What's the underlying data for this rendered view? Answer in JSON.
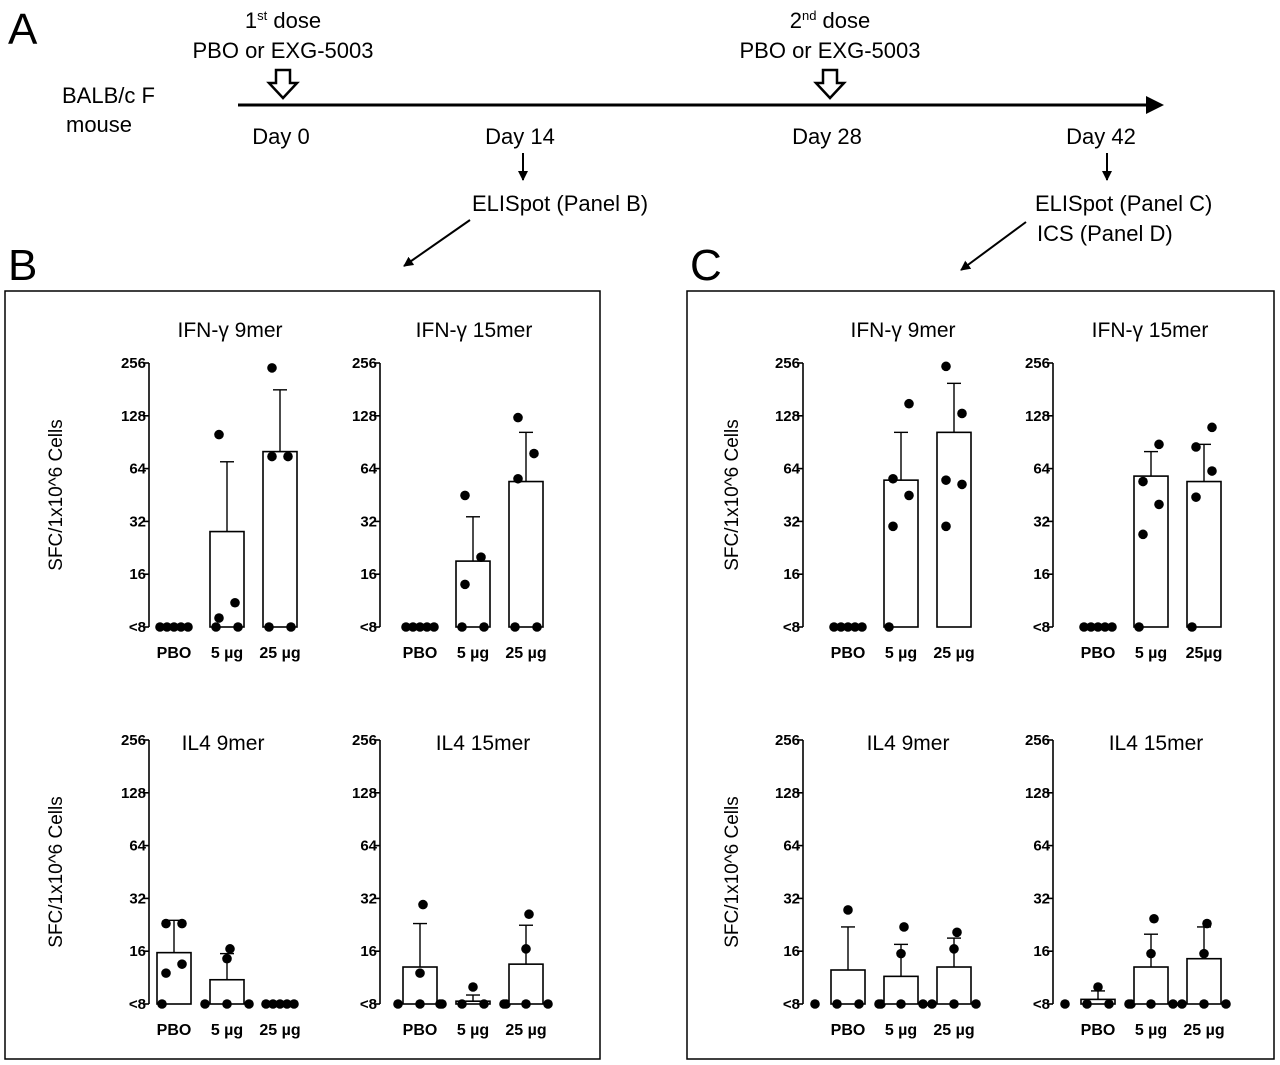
{
  "figure_labels": {
    "a": "A",
    "b": "B",
    "c": "C"
  },
  "timeline": {
    "subject_line1": "BALB/c F",
    "subject_line2": "mouse",
    "dose1_prefix": "1",
    "dose1_sup": "st",
    "dose1_suffix": " dose",
    "dose2_prefix": "2",
    "dose2_sup": "nd",
    "dose2_suffix": " dose",
    "treatment": "PBO or EXG-5003",
    "days": [
      "Day 0",
      "Day 14",
      "Day 28",
      "Day 42"
    ],
    "elispot_b": "ELISpot  (Panel B)",
    "elispot_c": "ELISpot  (Panel C)",
    "ics_d": "ICS  (Panel D)"
  },
  "colors": {
    "bar_fill": "#ffffff",
    "stroke": "#000000",
    "dot": "#000000"
  },
  "chart_data": [
    {
      "panel": "B",
      "type": "bar",
      "title": "IFN-γ  9mer",
      "ylabel": "SFC/1x10^6   Cells",
      "y_scale": "log2",
      "yticks": [
        "<8",
        "16",
        "32",
        "64",
        "128",
        "256"
      ],
      "categories": [
        "PBO",
        "5 µg",
        "25 µg"
      ],
      "values": [
        8,
        28,
        80
      ],
      "error_upper": [
        8,
        70,
        180
      ],
      "points": [
        [
          8,
          8,
          8,
          8,
          8
        ],
        [
          8,
          8,
          9,
          11,
          100
        ],
        [
          8,
          8,
          75,
          75,
          240
        ]
      ]
    },
    {
      "panel": "B",
      "type": "bar",
      "title": "IFN-γ  15mer",
      "ylabel": "",
      "y_scale": "log2",
      "yticks": [
        "<8",
        "16",
        "32",
        "64",
        "128",
        "256"
      ],
      "categories": [
        "PBO",
        "5 µg",
        "25 µg"
      ],
      "values": [
        8,
        19,
        54
      ],
      "error_upper": [
        8,
        34,
        103
      ],
      "points": [
        [
          8,
          8,
          8,
          8,
          8
        ],
        [
          8,
          8,
          14,
          20,
          45
        ],
        [
          8,
          8,
          56,
          78,
          125
        ]
      ]
    },
    {
      "panel": "B",
      "type": "bar",
      "title": "IL4  9mer",
      "ylabel": "SFC/1x10^6   Cells",
      "y_scale": "log2",
      "yticks": [
        "<8",
        "16",
        "32",
        "64",
        "128",
        "256"
      ],
      "categories": [
        "PBO",
        "5 µg",
        "25 µg"
      ],
      "values": [
        15.7,
        11,
        8
      ],
      "error_upper": [
        24,
        15.5,
        8
      ],
      "points": [
        [
          8,
          12,
          13.5,
          23,
          23
        ],
        [
          8,
          8,
          8,
          14.5,
          16.5
        ],
        [
          8,
          8,
          8,
          8,
          8
        ]
      ]
    },
    {
      "panel": "B",
      "type": "bar",
      "title": "IL4  15mer",
      "ylabel": "",
      "y_scale": "log2",
      "yticks": [
        "<8",
        "16",
        "32",
        "64",
        "128",
        "256"
      ],
      "categories": [
        "PBO",
        "5 µg",
        "25 µg"
      ],
      "values": [
        13,
        8.3,
        13.5
      ],
      "error_upper": [
        23,
        9,
        22.5
      ],
      "points": [
        [
          8,
          8,
          8,
          12,
          29.5
        ],
        [
          8,
          8,
          8,
          8,
          10
        ],
        [
          8,
          8,
          8,
          16.5,
          26
        ]
      ]
    },
    {
      "panel": "C",
      "type": "bar",
      "title": "IFN-γ  9mer",
      "ylabel": "SFC/1x10^6   Cells",
      "y_scale": "log2",
      "yticks": [
        "<8",
        "16",
        "32",
        "64",
        "128",
        "256"
      ],
      "categories": [
        "PBO",
        "5 µg",
        "25 µg"
      ],
      "values": [
        8,
        55,
        103
      ],
      "error_upper": [
        8,
        103,
        196
      ],
      "points": [
        [
          8,
          8,
          8,
          8,
          8
        ],
        [
          8,
          30,
          45,
          56,
          150
        ],
        [
          30,
          52,
          55,
          132,
          245
        ]
      ]
    },
    {
      "panel": "C",
      "type": "bar",
      "title": "IFN-γ  15mer",
      "ylabel": "",
      "y_scale": "log2",
      "yticks": [
        "<8",
        "16",
        "32",
        "64",
        "128",
        "256"
      ],
      "categories": [
        "PBO",
        "5 µg",
        "25µg"
      ],
      "values": [
        8,
        58,
        54
      ],
      "error_upper": [
        8,
        80,
        88
      ],
      "points": [
        [
          8,
          8,
          8,
          8,
          8
        ],
        [
          8,
          27,
          40,
          54,
          88
        ],
        [
          8,
          44,
          62,
          85,
          110
        ]
      ]
    },
    {
      "panel": "C",
      "type": "bar",
      "title": "IL4  9mer",
      "ylabel": "SFC/1x10^6   Cells",
      "y_scale": "log2",
      "yticks": [
        "<8",
        "16",
        "32",
        "64",
        "128",
        "256"
      ],
      "categories": [
        "PBO",
        "5 µg",
        "25 µg"
      ],
      "values": [
        12.5,
        11.5,
        13
      ],
      "error_upper": [
        22,
        17.5,
        19
      ],
      "points": [
        [
          8,
          8,
          8,
          8,
          27.5
        ],
        [
          8,
          8,
          8,
          15.5,
          22
        ],
        [
          8,
          8,
          8,
          16.5,
          20.5
        ]
      ]
    },
    {
      "panel": "C",
      "type": "bar",
      "title": "IL4  15mer",
      "ylabel": "",
      "y_scale": "log2",
      "yticks": [
        "<8",
        "16",
        "32",
        "64",
        "128",
        "256"
      ],
      "categories": [
        "PBO",
        "5 µg",
        "25 µg"
      ],
      "values": [
        8.5,
        13,
        14.5
      ],
      "error_upper": [
        9.5,
        20,
        22
      ],
      "points": [
        [
          8,
          8,
          8,
          8,
          10
        ],
        [
          8,
          8,
          8,
          15.5,
          24.5
        ],
        [
          8,
          8,
          8,
          15.5,
          23
        ]
      ]
    }
  ]
}
